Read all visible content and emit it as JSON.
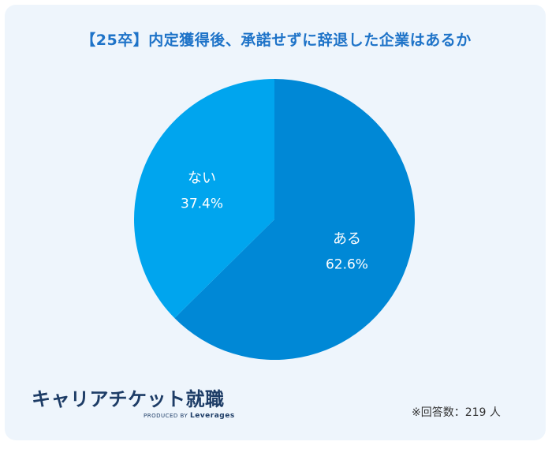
{
  "title": "【25卒】内定獲得後、承諾せずに辞退した企業はあるか",
  "chart_data": {
    "type": "pie",
    "title": "【25卒】内定獲得後、承諾せずに辞退した企業はあるか",
    "slices": [
      {
        "label": "ある",
        "value": 62.6,
        "display": "62.6%",
        "color": "#0088d6"
      },
      {
        "label": "ない",
        "value": 37.4,
        "display": "37.4%",
        "color": "#00a5ee"
      }
    ],
    "start": "12 o'clock",
    "direction": "clockwise"
  },
  "logo": {
    "main": "キャリアチケット就職",
    "produced_by": "PRODUCED BY",
    "company": "Leverages"
  },
  "footnote": "※回答数：219 人",
  "colors": {
    "background": "#eef5fc",
    "title": "#1e73c8",
    "logo": "#1d3c66"
  }
}
